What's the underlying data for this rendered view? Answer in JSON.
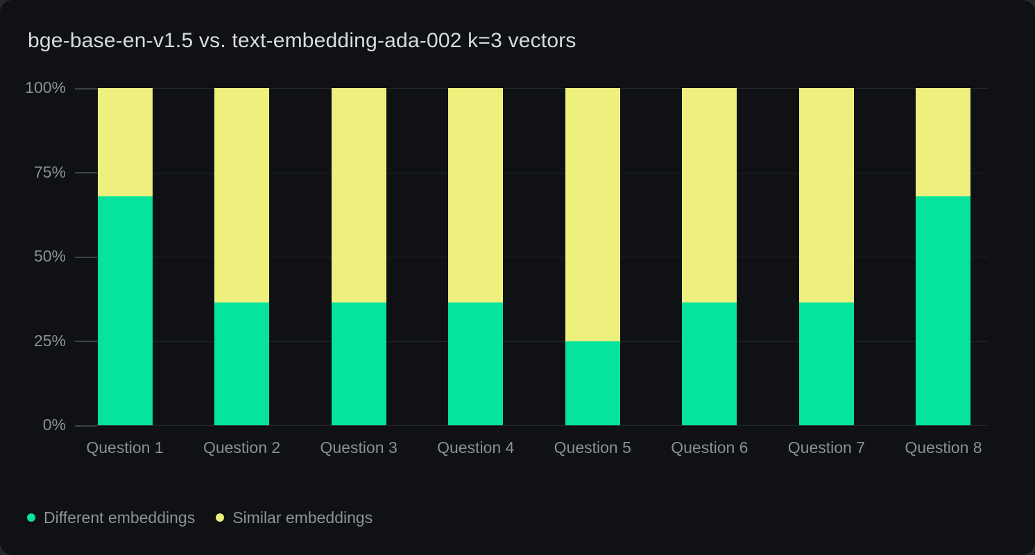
{
  "card": {
    "title": "bge-base-en-v1.5 vs. text-embedding-ada-002 k=3 vectors"
  },
  "colors": {
    "different_embeddings": "#06e39c",
    "similar_embeddings": "#eef07e",
    "grid": "#24272a",
    "tick": "#3f4347",
    "axis_text": "#8b9096",
    "title_text": "#d8dbdf",
    "card_bg": "#0f1114",
    "page_bg": "#27282c"
  },
  "chart_data": {
    "type": "bar",
    "stacked": true,
    "title": "bge-base-en-v1.5 vs. text-embedding-ada-002 k=3 vectors",
    "xlabel": "",
    "ylabel": "",
    "ylim": [
      0,
      100
    ],
    "grid": "horizontal",
    "legend_position": "bottom-left",
    "categories": [
      "Question 1",
      "Question 2",
      "Question 3",
      "Question 4",
      "Question 5",
      "Question 6",
      "Question 7",
      "Question 8"
    ],
    "series": [
      {
        "name": "Different embeddings",
        "color_key": "different_embeddings",
        "values": [
          68,
          36.5,
          36.5,
          36.5,
          25,
          36.5,
          36.5,
          68
        ]
      },
      {
        "name": "Similar embeddings",
        "color_key": "similar_embeddings",
        "values": [
          32,
          63.5,
          63.5,
          63.5,
          75,
          63.5,
          63.5,
          32
        ]
      }
    ],
    "yticks": [
      {
        "label": "0%",
        "value": 0
      },
      {
        "label": "25%",
        "value": 25
      },
      {
        "label": "50%",
        "value": 50
      },
      {
        "label": "75%",
        "value": 75
      },
      {
        "label": "100%",
        "value": 100
      }
    ]
  },
  "legend": {
    "items": [
      {
        "label": "Different embeddings",
        "color_key": "different_embeddings"
      },
      {
        "label": "Similar embeddings",
        "color_key": "similar_embeddings"
      }
    ]
  }
}
